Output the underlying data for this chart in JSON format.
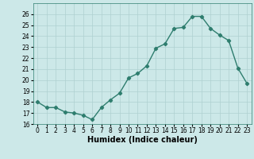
{
  "xlabel": "Humidex (Indice chaleur)",
  "x": [
    0,
    1,
    2,
    3,
    4,
    5,
    6,
    7,
    8,
    9,
    10,
    11,
    12,
    13,
    14,
    15,
    16,
    17,
    18,
    19,
    20,
    21,
    22,
    23
  ],
  "y": [
    18.0,
    17.5,
    17.5,
    17.1,
    17.0,
    16.8,
    16.4,
    17.5,
    18.2,
    18.8,
    20.2,
    20.6,
    21.3,
    22.9,
    23.3,
    24.7,
    24.8,
    25.8,
    25.8,
    24.7,
    24.1,
    23.6,
    21.1,
    19.7
  ],
  "line_color": "#2e7d6e",
  "marker": "D",
  "marker_size": 2.2,
  "bg_color": "#cce8e8",
  "grid_color": "#afd0d0",
  "ylim": [
    16,
    27
  ],
  "yticks": [
    16,
    17,
    18,
    19,
    20,
    21,
    22,
    23,
    24,
    25,
    26
  ],
  "xticks": [
    0,
    1,
    2,
    3,
    4,
    5,
    6,
    7,
    8,
    9,
    10,
    11,
    12,
    13,
    14,
    15,
    16,
    17,
    18,
    19,
    20,
    21,
    22,
    23
  ],
  "tick_fontsize": 5.5,
  "label_fontsize": 7.0,
  "line_width": 1.0
}
